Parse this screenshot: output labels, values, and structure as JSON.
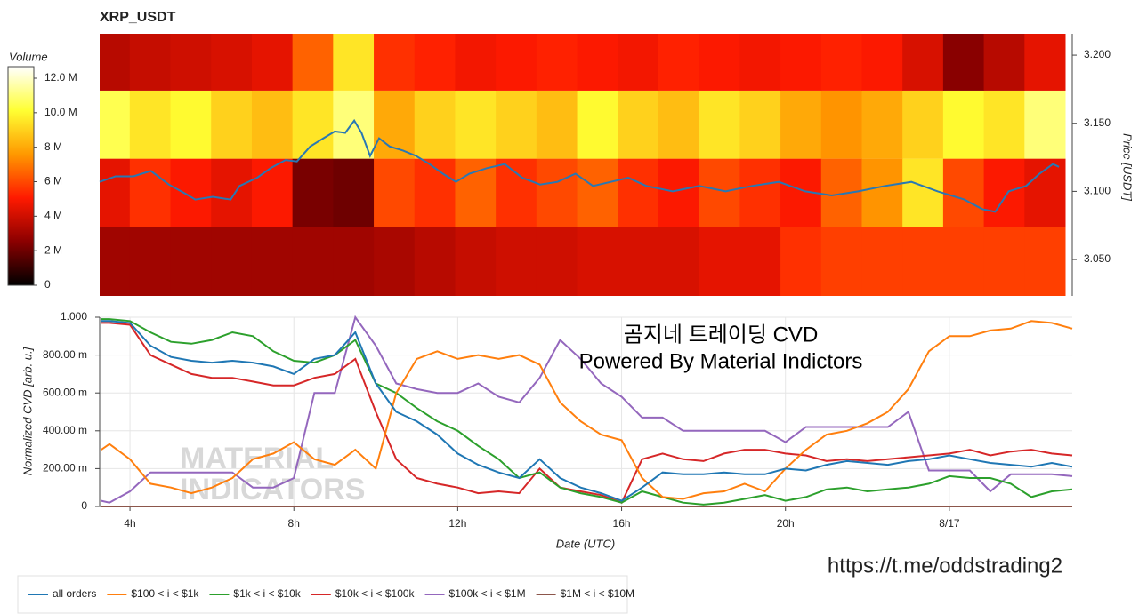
{
  "chart_data": [
    {
      "type": "heatmap",
      "title": "XRP_USDT",
      "colorbar_label": "Volume",
      "ylabel": "Price [USDT]",
      "xlim": [
        3.26,
        27.0
      ],
      "ylim": [
        3.0233,
        3.2157
      ],
      "yticks": [
        {
          "value": 3.05,
          "label": "3.050"
        },
        {
          "value": 3.1,
          "label": "3.100"
        },
        {
          "value": 3.15,
          "label": "3.150"
        },
        {
          "value": 3.2,
          "label": "3.200"
        }
      ],
      "x_bins": [
        3.26,
        4,
        5,
        6,
        7,
        8,
        9,
        10,
        11,
        12,
        13,
        14,
        15,
        16,
        17,
        18,
        19,
        20,
        21,
        22,
        23,
        24,
        25,
        26,
        27.0
      ],
      "y_bins": [
        3.0233,
        3.074,
        3.124,
        3.174,
        3.2157
      ],
      "z": [
        [
          3000000,
          3000000,
          3000000,
          3000000,
          3000000,
          3000000,
          3000000,
          3200000,
          3500000,
          3800000,
          4000000,
          4000000,
          4200000,
          4200000,
          4200000,
          4500000,
          4500000,
          5500000,
          5800000,
          5800000,
          5800000,
          5800000,
          5800000,
          5800000
        ],
        [
          4500000,
          5500000,
          5000000,
          4500000,
          5000000,
          2200000,
          2000000,
          6000000,
          5500000,
          6500000,
          5500000,
          6000000,
          6500000,
          5500000,
          5000000,
          6000000,
          5500000,
          5000000,
          6500000,
          7500000,
          9500000,
          6000000,
          5000000,
          4500000
        ],
        [
          10500000,
          9500000,
          10000000,
          9000000,
          8500000,
          9500000,
          11000000,
          8000000,
          9000000,
          9500000,
          9000000,
          8500000,
          10000000,
          9000000,
          8500000,
          9500000,
          9000000,
          8000000,
          7500000,
          8000000,
          9000000,
          10000000,
          9500000,
          11000000
        ],
        [
          3500000,
          3800000,
          4000000,
          4200000,
          4500000,
          6500000,
          9500000,
          5500000,
          5200000,
          4800000,
          5000000,
          5200000,
          5000000,
          4800000,
          5200000,
          5000000,
          4800000,
          5000000,
          5200000,
          5000000,
          4200000,
          2500000,
          3500000,
          4500000
        ]
      ],
      "zlim": [
        0,
        12670000
      ],
      "zticks": [
        0,
        {
          "value": 2000000,
          "label": "2 M"
        },
        {
          "value": 4000000,
          "label": "4 M"
        },
        {
          "value": 6000000,
          "label": "6 M"
        },
        {
          "value": 8000000,
          "label": "8 M"
        },
        {
          "value": 10000000,
          "label": "10.0 M"
        },
        {
          "value": 12000000,
          "label": "12.0 M"
        }
      ],
      "colormap": [
        "#000000",
        "#8b0000",
        "#ff1a00",
        "#ff9900",
        "#ffff33",
        "#ffffff"
      ],
      "line_color": "#2878b4",
      "x": [
        3.26,
        3.65,
        4.09,
        4.52,
        4.96,
        5.39,
        5.61,
        6.04,
        6.48,
        6.7,
        7.13,
        7.46,
        7.83,
        8.11,
        8.44,
        8.76,
        9.04,
        9.3,
        9.52,
        9.7,
        9.91,
        10.13,
        10.39,
        10.72,
        11.04,
        11.37,
        11.7,
        12.02,
        12.35,
        12.78,
        13.22,
        13.65,
        14.09,
        14.52,
        14.96,
        15.39,
        15.83,
        16.26,
        16.7,
        17.35,
        18.0,
        18.65,
        19.3,
        19.96,
        20.61,
        21.26,
        21.91,
        22.57,
        23.22,
        23.87,
        24.52,
        24.96,
        25.28,
        25.61,
        26.04,
        26.37,
        26.7,
        26.85
      ],
      "values": [
        3.107,
        3.111,
        3.111,
        3.115,
        3.105,
        3.098,
        3.094,
        3.096,
        3.094,
        3.104,
        3.11,
        3.117,
        3.123,
        3.122,
        3.133,
        3.139,
        3.144,
        3.143,
        3.152,
        3.143,
        3.126,
        3.139,
        3.133,
        3.13,
        3.126,
        3.12,
        3.113,
        3.107,
        3.113,
        3.117,
        3.12,
        3.11,
        3.105,
        3.107,
        3.113,
        3.104,
        3.107,
        3.11,
        3.104,
        3.1,
        3.104,
        3.1,
        3.104,
        3.107,
        3.1,
        3.097,
        3.1,
        3.104,
        3.107,
        3.1,
        3.094,
        3.087,
        3.085,
        3.1,
        3.104,
        3.113,
        3.12,
        3.118
      ]
    },
    {
      "type": "line",
      "xlabel": "Date (UTC)",
      "ylabel": "Normalized CVD [arb. u.]",
      "annotations": [
        "곰지네 트레이딩 CVD",
        "Powered By Material Indictors"
      ],
      "watermark": [
        "MATERIAL",
        "INDICATORS"
      ],
      "grid": true,
      "legend": "bottom-left",
      "xlim": [
        3.26,
        27.0
      ],
      "ylim": [
        0,
        1.0
      ],
      "xticks": [
        {
          "value": 4,
          "label": "4h"
        },
        {
          "value": 8,
          "label": "8h"
        },
        {
          "value": 12,
          "label": "12h"
        },
        {
          "value": 16,
          "label": "16h"
        },
        {
          "value": 20,
          "label": "20h"
        },
        {
          "value": 24,
          "label": "8/17"
        }
      ],
      "yticks": [
        0,
        {
          "value": 0.2,
          "label": "200.00 m"
        },
        {
          "value": 0.4,
          "label": "400.00 m"
        },
        {
          "value": 0.6,
          "label": "600.00 m"
        },
        {
          "value": 0.8,
          "label": "800.00 m"
        },
        {
          "value": 1.0,
          "label": "1.000"
        }
      ],
      "x": [
        3.3,
        3.5,
        4,
        4.5,
        5,
        5.5,
        6,
        6.5,
        7,
        7.5,
        8,
        8.5,
        9,
        9.5,
        10,
        10.5,
        11,
        11.5,
        12,
        12.5,
        13,
        13.5,
        14,
        14.5,
        15,
        15.5,
        16,
        16.5,
        17,
        17.5,
        18,
        18.5,
        19,
        19.5,
        20,
        20.5,
        21,
        21.5,
        22,
        22.5,
        23,
        23.5,
        24,
        24.5,
        25,
        25.5,
        26,
        26.5,
        27.0
      ],
      "series": [
        {
          "name": "all orders",
          "color": "#1f77b4",
          "values": [
            0.98,
            0.98,
            0.97,
            0.85,
            0.79,
            0.77,
            0.76,
            0.77,
            0.76,
            0.74,
            0.7,
            0.78,
            0.8,
            0.92,
            0.65,
            0.5,
            0.45,
            0.38,
            0.28,
            0.22,
            0.18,
            0.15,
            0.25,
            0.15,
            0.1,
            0.07,
            0.03,
            0.1,
            0.18,
            0.17,
            0.17,
            0.18,
            0.17,
            0.17,
            0.2,
            0.19,
            0.22,
            0.24,
            0.23,
            0.22,
            0.24,
            0.25,
            0.27,
            0.25,
            0.23,
            0.22,
            0.21,
            0.23,
            0.21
          ]
        },
        {
          "name": "$100 < i < $1k",
          "color": "#ff7f0e",
          "values": [
            0.3,
            0.33,
            0.25,
            0.12,
            0.1,
            0.07,
            0.1,
            0.15,
            0.25,
            0.28,
            0.34,
            0.25,
            0.22,
            0.3,
            0.2,
            0.6,
            0.78,
            0.82,
            0.78,
            0.8,
            0.78,
            0.8,
            0.75,
            0.55,
            0.45,
            0.38,
            0.35,
            0.15,
            0.05,
            0.04,
            0.07,
            0.08,
            0.12,
            0.08,
            0.2,
            0.3,
            0.38,
            0.4,
            0.44,
            0.5,
            0.62,
            0.82,
            0.9,
            0.9,
            0.93,
            0.94,
            0.98,
            0.97,
            0.94
          ]
        },
        {
          "name": "$1k < i < $10k",
          "color": "#2ca02c",
          "values": [
            0.99,
            0.99,
            0.98,
            0.92,
            0.87,
            0.86,
            0.88,
            0.92,
            0.9,
            0.82,
            0.77,
            0.76,
            0.8,
            0.88,
            0.65,
            0.6,
            0.52,
            0.45,
            0.4,
            0.32,
            0.25,
            0.15,
            0.18,
            0.1,
            0.07,
            0.05,
            0.02,
            0.08,
            0.05,
            0.02,
            0.01,
            0.02,
            0.04,
            0.06,
            0.03,
            0.05,
            0.09,
            0.1,
            0.08,
            0.09,
            0.1,
            0.12,
            0.16,
            0.15,
            0.15,
            0.12,
            0.05,
            0.08,
            0.09
          ]
        },
        {
          "name": "$10k < i < $100k",
          "color": "#d62728",
          "values": [
            0.97,
            0.97,
            0.96,
            0.8,
            0.75,
            0.7,
            0.68,
            0.68,
            0.66,
            0.64,
            0.64,
            0.68,
            0.7,
            0.78,
            0.5,
            0.25,
            0.15,
            0.12,
            0.1,
            0.07,
            0.08,
            0.07,
            0.2,
            0.1,
            0.08,
            0.06,
            0.02,
            0.25,
            0.28,
            0.25,
            0.24,
            0.28,
            0.3,
            0.3,
            0.28,
            0.27,
            0.24,
            0.25,
            0.24,
            0.25,
            0.26,
            0.27,
            0.28,
            0.3,
            0.27,
            0.29,
            0.3,
            0.28,
            0.27
          ]
        },
        {
          "name": "$100k < i < $1M",
          "color": "#9467bd",
          "values": [
            0.03,
            0.02,
            0.08,
            0.18,
            0.18,
            0.18,
            0.18,
            0.18,
            0.1,
            0.1,
            0.15,
            0.6,
            0.6,
            1.0,
            0.85,
            0.65,
            0.62,
            0.6,
            0.6,
            0.65,
            0.58,
            0.55,
            0.68,
            0.88,
            0.78,
            0.65,
            0.58,
            0.47,
            0.47,
            0.4,
            0.4,
            0.4,
            0.4,
            0.4,
            0.34,
            0.42,
            0.42,
            0.42,
            0.42,
            0.42,
            0.5,
            0.19,
            0.19,
            0.19,
            0.08,
            0.17,
            0.17,
            0.17,
            0.16
          ]
        },
        {
          "name": "$1M < i < $10M",
          "color": "#8c564b",
          "values": [
            0,
            0,
            0,
            0,
            0,
            0,
            0,
            0,
            0,
            0,
            0,
            0,
            0,
            0,
            0,
            0,
            0,
            0,
            0,
            0,
            0,
            0,
            0,
            0,
            0,
            0,
            0,
            0,
            0,
            0,
            0,
            0,
            0,
            0,
            0,
            0,
            0,
            0,
            0,
            0,
            0,
            0,
            0,
            0,
            0,
            0,
            0,
            0,
            0
          ]
        }
      ]
    }
  ],
  "link": "https://t.me/oddstrading2"
}
